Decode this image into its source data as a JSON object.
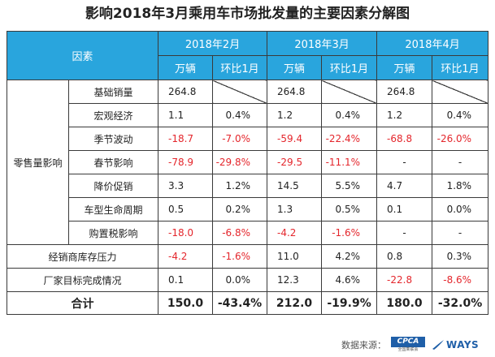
{
  "title": "影响2018年3月乘用车市场批发量的主要因素分解图",
  "header": {
    "factor_label": "因素",
    "months": [
      "2018年2月",
      "2018年3月",
      "2018年4月"
    ],
    "unit_label": "万辆",
    "mom_label": "环比1月"
  },
  "group_label": "零售量影响",
  "rows": [
    {
      "label": "基础销量",
      "cells": [
        [
          "264.8",
          null
        ],
        [
          "264.8",
          null
        ],
        [
          "264.8",
          null
        ]
      ]
    },
    {
      "label": "宏观经济",
      "cells": [
        [
          "1.1",
          "0.4%"
        ],
        [
          "1.2",
          "0.4%"
        ],
        [
          "1.2",
          "0.4%"
        ]
      ]
    },
    {
      "label": "季节波动",
      "cells": [
        [
          "-18.7",
          "-7.0%"
        ],
        [
          "-59.4",
          "-22.4%"
        ],
        [
          "-68.8",
          "-26.0%"
        ]
      ]
    },
    {
      "label": "春节影响",
      "cells": [
        [
          "-78.9",
          "-29.8%"
        ],
        [
          "-29.5",
          "-11.1%"
        ],
        [
          "-",
          "-"
        ]
      ]
    },
    {
      "label": "降价促销",
      "cells": [
        [
          "3.3",
          "1.2%"
        ],
        [
          "14.5",
          "5.5%"
        ],
        [
          "4.7",
          "1.8%"
        ]
      ]
    },
    {
      "label": "车型生命周期",
      "cells": [
        [
          "0.5",
          "0.2%"
        ],
        [
          "1.3",
          "0.5%"
        ],
        [
          "0.1",
          "0.0%"
        ]
      ]
    },
    {
      "label": "购置税影响",
      "cells": [
        [
          "-18.0",
          "-6.8%"
        ],
        [
          "-4.2",
          "-1.6%"
        ],
        [
          "-",
          "-"
        ]
      ]
    }
  ],
  "other_rows": [
    {
      "label": "经销商库存压力",
      "cells": [
        [
          "-4.2",
          "-1.6%"
        ],
        [
          "11.0",
          "4.2%"
        ],
        [
          "0.8",
          "0.3%"
        ]
      ]
    },
    {
      "label": "厂家目标完成情况",
      "cells": [
        [
          "0.1",
          "0.0%"
        ],
        [
          "12.3",
          "4.6%"
        ],
        [
          "-22.8",
          "-8.6%"
        ]
      ]
    }
  ],
  "total": {
    "label": "合计",
    "cells": [
      [
        "150.0",
        "-43.4%"
      ],
      [
        "212.0",
        "-19.9%"
      ],
      [
        "180.0",
        "-32.0%"
      ]
    ]
  },
  "footer": {
    "source_label": "数据来源：",
    "cpca_logo_text": "CPCA",
    "cpca_logo_sub": "全国乘联会",
    "ways_logo_text": "WAYS"
  },
  "colors": {
    "header_bg": "#29a5dd",
    "negative": "#e4262c",
    "logo_blue": "#1f5fa8"
  }
}
